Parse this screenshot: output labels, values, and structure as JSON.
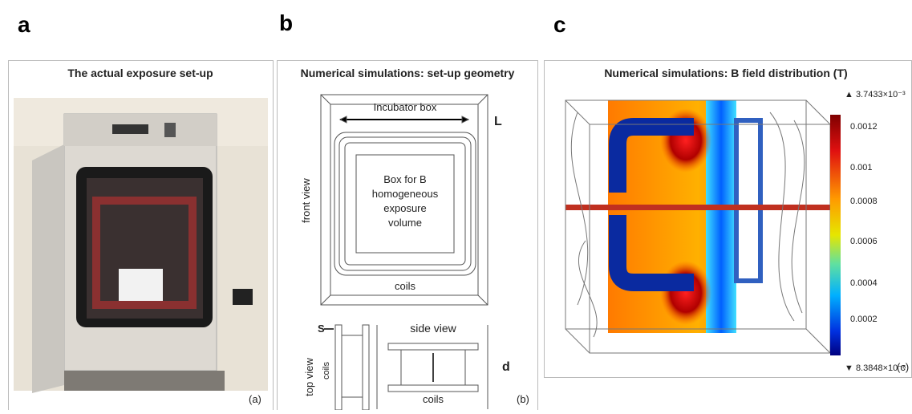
{
  "panels": [
    {
      "letter": "a",
      "title": "The actual exposure set-up",
      "tag": "(a)"
    },
    {
      "letter": "b",
      "title": "Numerical simulations: set-up geometry",
      "tag": "(b)",
      "labels": {
        "incubator": "Incubator box",
        "L": "L",
        "front_view": "front view",
        "box": [
          "Box for B",
          "homogeneous",
          "exposure",
          "volume"
        ],
        "coils_front": "coils",
        "s": "S",
        "top_view": "top view",
        "coils_top": "coils",
        "side_view": "side view",
        "d": "d",
        "coils_side": "coils"
      }
    },
    {
      "letter": "c",
      "title": "Numerical simulations: B field distribution (T)",
      "tag": "(c)",
      "colorbar": {
        "max": "▲ 3.7433×10⁻³",
        "min": "▼ 8.3848×10⁻⁶",
        "ticks": [
          "0.0012",
          "0.001",
          "0.0008",
          "0.0006",
          "0.0004",
          "0.0002"
        ]
      }
    }
  ]
}
